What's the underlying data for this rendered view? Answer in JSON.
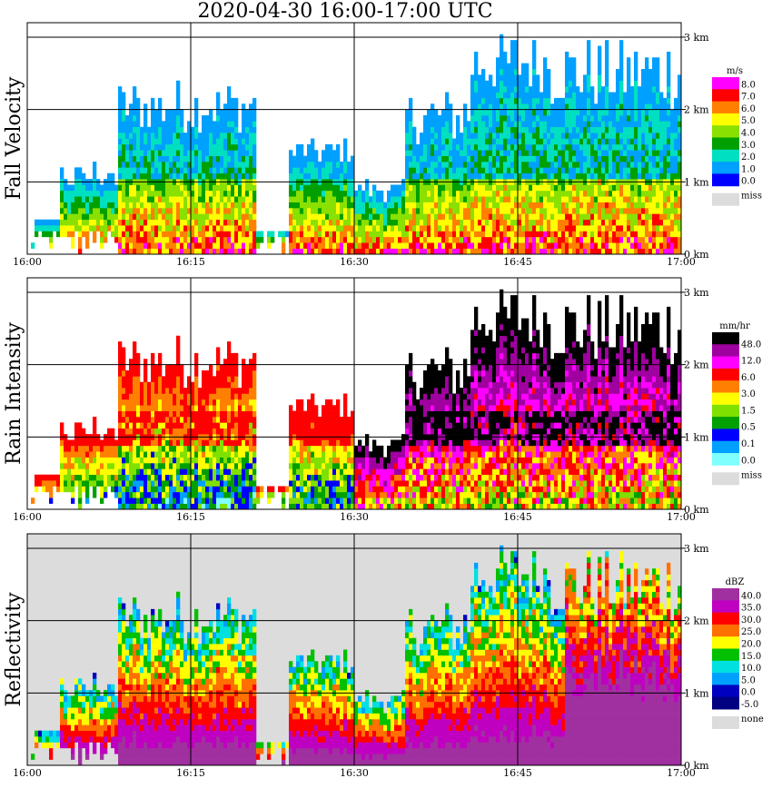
{
  "title": "2020-04-30   16:00-17:00 UTC",
  "chart_data": [
    {
      "type": "heatmap",
      "title": "Fall Velocity",
      "x_ticks": [
        "16:00",
        "16:15",
        "16:30",
        "16:45",
        "17:00"
      ],
      "y_ticks": [
        "0 km",
        "1 km",
        "2 km",
        "3 km"
      ],
      "xlim": [
        "16:00",
        "17:00"
      ],
      "ylim_km": [
        0,
        3.2
      ],
      "colorbar": {
        "unit": "m/s",
        "levels": [
          "8.0",
          "7.0",
          "6.0",
          "5.0",
          "4.0",
          "3.0",
          "2.0",
          "1.0",
          "0.0"
        ],
        "colors": [
          "#ff00ff",
          "#ff0000",
          "#ff8000",
          "#ffff00",
          "#8ae000",
          "#00a000",
          "#00e0c0",
          "#00a0ff",
          "#0000ff"
        ],
        "missing_label": "miss",
        "missing_color": "#dcdcdc"
      }
    },
    {
      "type": "heatmap",
      "title": "Rain Intensity",
      "x_ticks": [
        "16:00",
        "16:15",
        "16:30",
        "16:45",
        "17:00"
      ],
      "y_ticks": [
        "0 km",
        "1 km",
        "2 km",
        "3 km"
      ],
      "xlim": [
        "16:00",
        "17:00"
      ],
      "ylim_km": [
        0,
        3.2
      ],
      "colorbar": {
        "unit": "mm/hr",
        "levels": [
          "48.0",
          "12.0",
          "6.0",
          "3.0",
          "1.5",
          "0.5",
          "0.1",
          "0.0"
        ],
        "colors": [
          "#000000",
          "#a000a0",
          "#ff00ff",
          "#ff0000",
          "#ff8000",
          "#ffff00",
          "#80e000",
          "#00a000",
          "#0000ff",
          "#00a0ff",
          "#80ffff"
        ],
        "missing_label": "miss",
        "missing_color": "#dcdcdc"
      }
    },
    {
      "type": "heatmap",
      "title": "Reflectivity",
      "x_ticks": [
        "16:00",
        "16:15",
        "16:30",
        "16:45",
        "17:00"
      ],
      "y_ticks": [
        "0 km",
        "1 km",
        "2 km",
        "3 km"
      ],
      "xlim": [
        "16:00",
        "17:00"
      ],
      "ylim_km": [
        0,
        3.2
      ],
      "colorbar": {
        "unit": "dBZ",
        "levels": [
          "40.0",
          "35.0",
          "30.0",
          "25.0",
          "20.0",
          "15.0",
          "10.0",
          "5.0",
          "0.0",
          "-5.0"
        ],
        "colors": [
          "#a030a0",
          "#c000c0",
          "#ff0000",
          "#ff7000",
          "#ffff00",
          "#00c000",
          "#00e0e0",
          "#00a0ff",
          "#0000c0",
          "#000080"
        ],
        "missing_label": "none",
        "missing_color": "#dcdcdc"
      }
    }
  ]
}
